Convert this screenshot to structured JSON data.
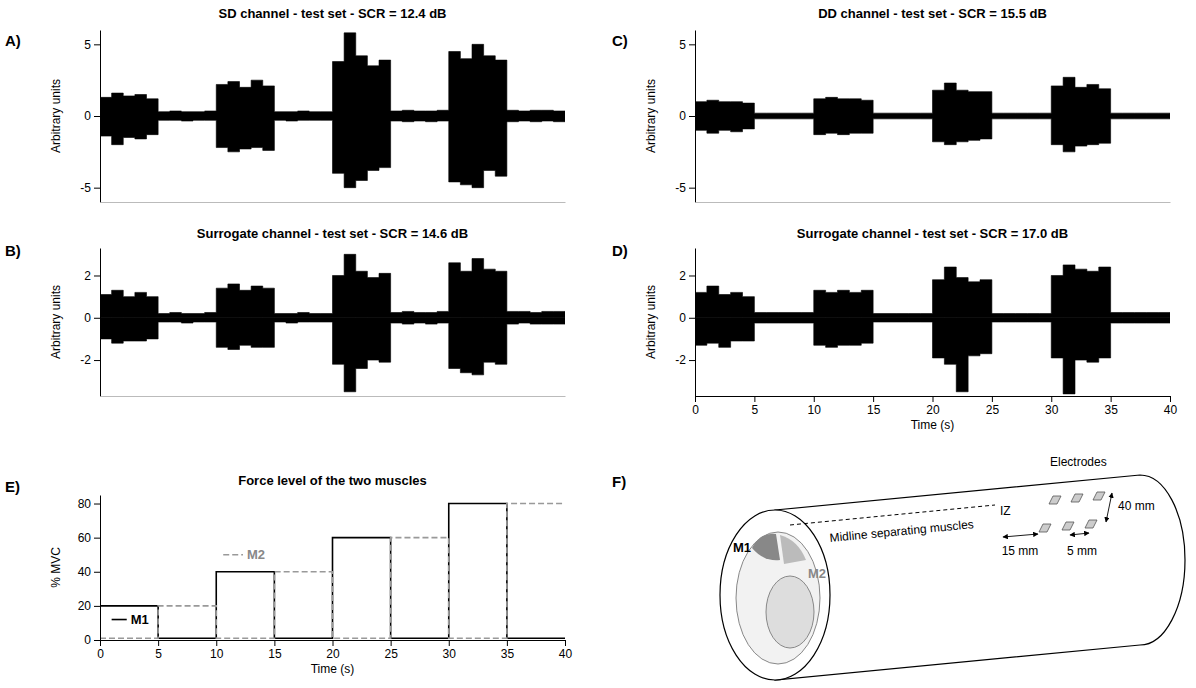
{
  "chart_data": [
    {
      "type": "area",
      "panel": "A)",
      "title": "SD channel - test set - SCR = 12.4 dB",
      "y_label": "Arbitrary units",
      "color": "#000000",
      "tick_labels": "y",
      "xlim": [
        0,
        40
      ],
      "ylim": [
        -6,
        6
      ],
      "yticks": [
        -5,
        0,
        5
      ],
      "x": [
        0,
        1,
        2,
        3,
        4,
        5,
        6,
        7,
        8,
        9,
        10,
        11,
        12,
        13,
        14,
        15,
        16,
        17,
        18,
        19,
        20,
        21,
        22,
        23,
        24,
        25,
        26,
        27,
        28,
        29,
        30,
        31,
        32,
        33,
        34,
        35,
        36,
        37,
        38,
        39,
        40
      ],
      "upper": [
        1.3,
        1.6,
        1.4,
        1.5,
        1.2,
        0.3,
        0.35,
        0.3,
        0.3,
        0.35,
        2.2,
        2.4,
        2.0,
        2.5,
        2.1,
        0.3,
        0.3,
        0.35,
        0.3,
        0.3,
        3.8,
        5.8,
        4.2,
        3.5,
        3.9,
        0.35,
        0.4,
        0.35,
        0.35,
        0.4,
        4.5,
        4.0,
        5.0,
        4.2,
        3.9,
        0.4,
        0.35,
        0.4,
        0.4,
        0.35,
        0.35
      ],
      "lower": [
        -1.4,
        -2.0,
        -1.5,
        -1.6,
        -1.3,
        -0.3,
        -0.3,
        -0.35,
        -0.3,
        -0.3,
        -2.2,
        -2.5,
        -2.3,
        -2.2,
        -2.4,
        -0.3,
        -0.35,
        -0.3,
        -0.3,
        -0.3,
        -4.0,
        -5.0,
        -4.5,
        -3.8,
        -3.6,
        -0.35,
        -0.4,
        -0.35,
        -0.4,
        -0.35,
        -4.6,
        -4.8,
        -5.0,
        -3.8,
        -4.2,
        -0.4,
        -0.35,
        -0.4,
        -0.35,
        -0.4,
        -0.4
      ]
    },
    {
      "type": "area",
      "panel": "B)",
      "title": "Surrogate channel - test set - SCR = 14.6 dB",
      "y_label": "Arbitrary units",
      "color": "#000000",
      "tick_labels": "y",
      "xlim": [
        0,
        40
      ],
      "ylim": [
        -3.7,
        3.3
      ],
      "yticks": [
        -2,
        0,
        2
      ],
      "x": [
        0,
        1,
        2,
        3,
        4,
        5,
        6,
        7,
        8,
        9,
        10,
        11,
        12,
        13,
        14,
        15,
        16,
        17,
        18,
        19,
        20,
        21,
        22,
        23,
        24,
        25,
        26,
        27,
        28,
        29,
        30,
        31,
        32,
        33,
        34,
        35,
        36,
        37,
        38,
        39,
        40
      ],
      "upper": [
        1.1,
        1.3,
        1.0,
        1.2,
        1.0,
        0.2,
        0.25,
        0.2,
        0.2,
        0.25,
        1.4,
        1.6,
        1.3,
        1.5,
        1.4,
        0.2,
        0.2,
        0.25,
        0.2,
        0.2,
        2.0,
        3.0,
        2.2,
        1.9,
        2.1,
        0.25,
        0.3,
        0.25,
        0.25,
        0.3,
        2.6,
        2.2,
        2.8,
        2.3,
        2.2,
        0.3,
        0.3,
        0.25,
        0.3,
        0.3,
        0.3
      ],
      "lower": [
        -1.0,
        -1.2,
        -1.1,
        -1.1,
        -1.0,
        -0.2,
        -0.2,
        -0.25,
        -0.2,
        -0.2,
        -1.4,
        -1.5,
        -1.3,
        -1.4,
        -1.4,
        -0.2,
        -0.25,
        -0.2,
        -0.2,
        -0.2,
        -2.2,
        -3.5,
        -2.4,
        -2.0,
        -2.1,
        -0.25,
        -0.3,
        -0.25,
        -0.3,
        -0.25,
        -2.4,
        -2.6,
        -2.7,
        -2.1,
        -2.2,
        -0.3,
        -0.25,
        -0.3,
        -0.3,
        -0.3,
        -0.3
      ]
    },
    {
      "type": "area",
      "panel": "C)",
      "title": "DD channel - test set - SCR = 15.5 dB",
      "y_label": "Arbitrary units",
      "color": "#000000",
      "tick_labels": "y",
      "xlim": [
        0,
        40
      ],
      "ylim": [
        -6,
        6
      ],
      "yticks": [
        -5,
        0,
        5
      ],
      "x": [
        0,
        1,
        2,
        3,
        4,
        5,
        6,
        7,
        8,
        9,
        10,
        11,
        12,
        13,
        14,
        15,
        16,
        17,
        18,
        19,
        20,
        21,
        22,
        23,
        24,
        25,
        26,
        27,
        28,
        29,
        30,
        31,
        32,
        33,
        34,
        35,
        36,
        37,
        38,
        39,
        40
      ],
      "upper": [
        1.0,
        1.1,
        1.0,
        1.0,
        0.9,
        0.2,
        0.2,
        0.2,
        0.2,
        0.2,
        1.2,
        1.3,
        1.2,
        1.2,
        1.1,
        0.2,
        0.2,
        0.2,
        0.2,
        0.2,
        1.8,
        2.3,
        1.8,
        1.7,
        1.7,
        0.2,
        0.2,
        0.2,
        0.2,
        0.2,
        2.1,
        2.7,
        2.0,
        2.2,
        1.9,
        0.2,
        0.2,
        0.2,
        0.2,
        0.2,
        0.2
      ],
      "lower": [
        -1.0,
        -1.2,
        -1.0,
        -1.1,
        -0.9,
        -0.2,
        -0.2,
        -0.2,
        -0.2,
        -0.2,
        -1.3,
        -1.2,
        -1.3,
        -1.2,
        -1.2,
        -0.2,
        -0.2,
        -0.2,
        -0.2,
        -0.2,
        -1.8,
        -2.0,
        -1.8,
        -1.7,
        -1.6,
        -0.2,
        -0.2,
        -0.2,
        -0.2,
        -0.2,
        -2.0,
        -2.5,
        -2.1,
        -2.0,
        -1.9,
        -0.2,
        -0.2,
        -0.2,
        -0.2,
        -0.2,
        -0.2
      ]
    },
    {
      "type": "area",
      "panel": "D)",
      "title": "Surrogate channel - test set - SCR = 17.0 dB",
      "y_label": "Arbitrary units",
      "x_label": "Time (s)",
      "color": "#000000",
      "tick_labels": true,
      "xlim": [
        0,
        40
      ],
      "xticks": [
        0,
        5,
        10,
        15,
        20,
        25,
        30,
        35,
        40
      ],
      "ylim": [
        -3.7,
        3.3
      ],
      "yticks": [
        -2,
        0,
        2
      ],
      "x": [
        0,
        1,
        2,
        3,
        4,
        5,
        6,
        7,
        8,
        9,
        10,
        11,
        12,
        13,
        14,
        15,
        16,
        17,
        18,
        19,
        20,
        21,
        22,
        23,
        24,
        25,
        26,
        27,
        28,
        29,
        30,
        31,
        32,
        33,
        34,
        35,
        36,
        37,
        38,
        39,
        40
      ],
      "upper": [
        1.2,
        1.5,
        1.1,
        1.2,
        1.0,
        0.25,
        0.25,
        0.25,
        0.25,
        0.25,
        1.3,
        1.2,
        1.3,
        1.2,
        1.3,
        0.2,
        0.2,
        0.2,
        0.2,
        0.2,
        1.8,
        2.4,
        1.9,
        1.7,
        1.8,
        0.2,
        0.2,
        0.2,
        0.2,
        0.2,
        2.0,
        2.5,
        2.3,
        2.2,
        2.4,
        0.25,
        0.25,
        0.25,
        0.25,
        0.25,
        0.25
      ],
      "lower": [
        -1.3,
        -1.2,
        -1.4,
        -1.1,
        -1.1,
        -0.25,
        -0.25,
        -0.25,
        -0.25,
        -0.25,
        -1.3,
        -1.4,
        -1.3,
        -1.3,
        -1.2,
        -0.2,
        -0.2,
        -0.2,
        -0.2,
        -0.2,
        -1.9,
        -2.2,
        -3.5,
        -1.8,
        -1.7,
        -0.2,
        -0.2,
        -0.2,
        -0.2,
        -0.2,
        -1.9,
        -3.6,
        -2.0,
        -2.1,
        -1.9,
        -0.25,
        -0.25,
        -0.25,
        -0.25,
        -0.25,
        -0.25
      ]
    },
    {
      "type": "line",
      "panel": "E)",
      "title": "Force level of the two muscles",
      "y_label": "% MVC",
      "x_label": "Time (s)",
      "tick_labels": true,
      "xlim": [
        0,
        40
      ],
      "xticks": [
        0,
        5,
        10,
        15,
        20,
        25,
        30,
        35,
        40
      ],
      "ylim": [
        0,
        85
      ],
      "yticks": [
        0,
        20,
        40,
        60,
        80
      ],
      "x": [
        0,
        5,
        10,
        15,
        20,
        25,
        30,
        35,
        40
      ],
      "series": [
        {
          "name": "M1",
          "color": "#000000",
          "line_style": "solid",
          "values": [
            20,
            1,
            40,
            1,
            60,
            1,
            80,
            1,
            1
          ]
        },
        {
          "name": "M2",
          "color": "#999999",
          "line_style": "dashed",
          "values": [
            1,
            20,
            1,
            40,
            1,
            60,
            1,
            80,
            80
          ]
        }
      ]
    }
  ],
  "diagram": {
    "panel": "F)",
    "electrodes": "Electrodes",
    "width": "40 mm",
    "iz": "IZ",
    "midline": "Midline separating muscles",
    "iz_distance": "15 mm",
    "spacing": "5 mm",
    "muscle_1": "M1",
    "muscle_2": "M2"
  }
}
